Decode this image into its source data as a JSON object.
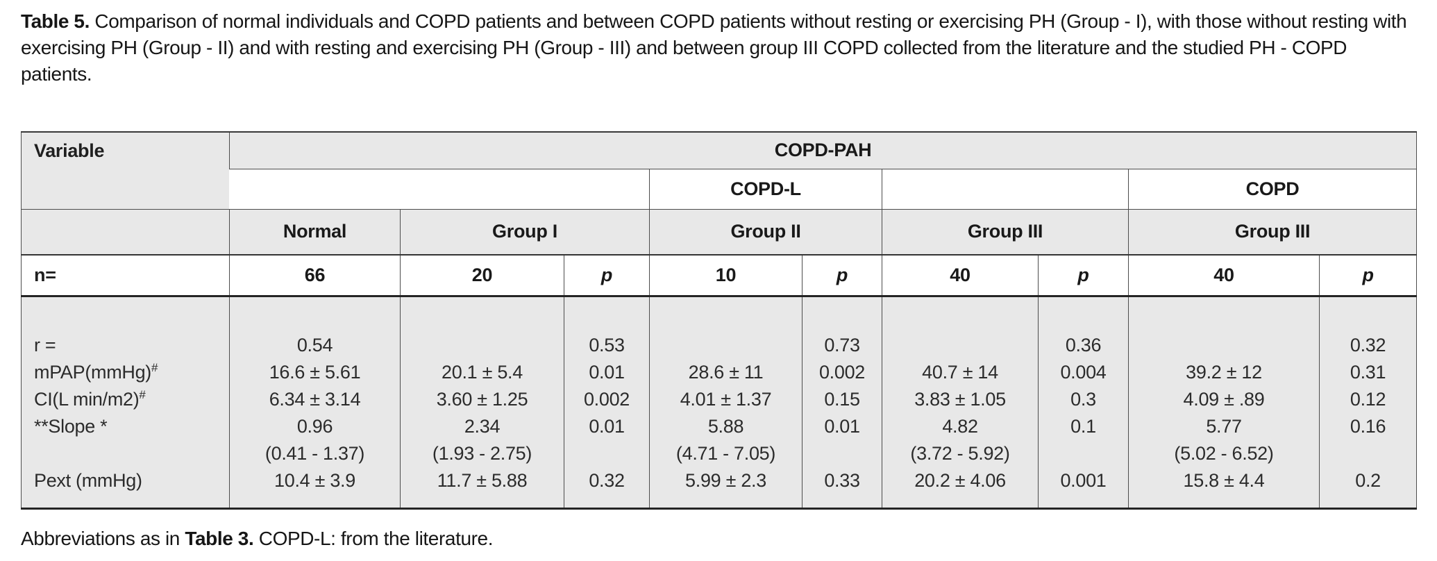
{
  "title": {
    "bold": "Table 5.",
    "text": "Comparison of normal individuals and COPD patients and between COPD patients without resting or exercising PH (Group - I), with those without resting with exercising PH (Group - II) and with resting and exercising PH (Group - III) and between group III COPD collected from the literature and the studied PH - COPD patients."
  },
  "table": {
    "corner_header": "Variable",
    "span_header": "COPD-PAH",
    "sub_headers": {
      "copd_l": "COPD-L",
      "copd": "COPD"
    },
    "group_headers": [
      "Normal",
      "Group I",
      "Group II",
      "Group III",
      "Group III"
    ],
    "n_row": {
      "label": "n=",
      "values": [
        "66",
        "20",
        "p",
        "10",
        "p",
        "40",
        "p",
        "40",
        "p"
      ]
    },
    "body_rows": [
      {
        "variable": "r =",
        "sup": "",
        "values": [
          "0.54",
          "",
          "0.53",
          "",
          "0.73",
          "",
          "0.36",
          "",
          "0.32"
        ]
      },
      {
        "variable": "mPAP(mmHg)",
        "sup": "#",
        "values": [
          "16.6 ± 5.61",
          "20.1 ± 5.4",
          "0.01",
          "28.6 ± 11",
          "0.002",
          "40.7 ± 14",
          "0.004",
          "39.2 ± 12",
          "0.31"
        ]
      },
      {
        "variable": "CI(L min/m2)",
        "sup": "#",
        "values": [
          "6.34 ± 3.14",
          "3.60 ± 1.25",
          "0.002",
          "4.01 ± 1.37",
          "0.15",
          "3.83 ± 1.05",
          "0.3",
          "4.09 ± .89",
          "0.12"
        ]
      },
      {
        "variable": "**Slope *",
        "sup": "",
        "values": [
          "0.96",
          "2.34",
          "0.01",
          "5.88",
          "0.01",
          "4.82",
          "0.1",
          "5.77",
          "0.16"
        ]
      },
      {
        "variable": "",
        "sup": "",
        "values": [
          "(0.41 - 1.37)",
          "(1.93 - 2.75)",
          "",
          "(4.71 - 7.05)",
          "",
          "(3.72 - 5.92)",
          "",
          "(5.02 - 6.52)",
          ""
        ]
      },
      {
        "variable": "Pext (mmHg)",
        "sup": "",
        "values": [
          "10.4 ± 3.9",
          "11.7 ± 5.88",
          "0.32",
          "5.99 ± 2.3",
          "0.33",
          "20.2 ± 4.06",
          "0.001",
          "15.8 ± 4.4",
          "0.2"
        ]
      }
    ]
  },
  "footer": {
    "prefix": "Abbreviations as in",
    "bold": "Table 3.",
    "suffix": "COPD-L: from the literature."
  },
  "colors": {
    "header_fill": "#e8e8e8",
    "body_fill": "#e8e8e8",
    "border": "#4c4c4c",
    "text": "#1f1f1f"
  }
}
